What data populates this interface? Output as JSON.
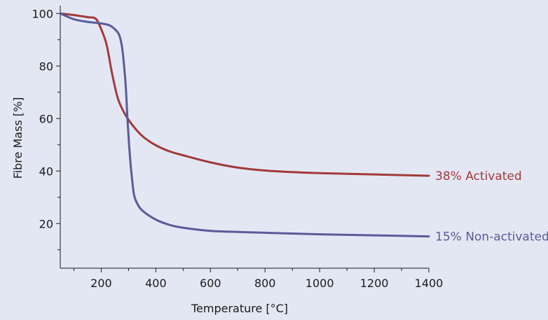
{
  "chart_data": {
    "type": "line",
    "title": "",
    "xlabel": "Temperature [°C]",
    "ylabel": "Fibre Mass [%]",
    "xlim": [
      50,
      1400
    ],
    "ylim": [
      3,
      103
    ],
    "x_ticks": [
      200,
      400,
      600,
      800,
      1000,
      1200,
      1400
    ],
    "x_minor_ticks": [
      100,
      300,
      500,
      700,
      900,
      1100,
      1300
    ],
    "y_ticks": [
      20,
      40,
      60,
      80,
      100
    ],
    "y_minor_ticks": [
      10,
      30,
      50,
      70,
      90
    ],
    "grid": false,
    "legend": "none (series labelled at line ends)",
    "series": [
      {
        "name": "Activated",
        "end_label": "38%  Activated",
        "color": "#a23a3a",
        "x": [
          50,
          100,
          150,
          180,
          200,
          220,
          240,
          260,
          280,
          300,
          330,
          360,
          400,
          450,
          500,
          600,
          700,
          800,
          900,
          1000,
          1200,
          1400
        ],
        "y": [
          100,
          99.4,
          98.6,
          98,
          94,
          88,
          77,
          68,
          63,
          59.5,
          55.5,
          52.5,
          49.8,
          47.5,
          46,
          43.3,
          41.3,
          40.2,
          39.6,
          39.2,
          38.7,
          38.2
        ]
      },
      {
        "name": "Non-activated",
        "end_label": "15%  Non-activated",
        "color": "#5a5a9a",
        "x": [
          50,
          100,
          150,
          200,
          230,
          250,
          265,
          275,
          282,
          290,
          296,
          302,
          308,
          314,
          320,
          330,
          350,
          400,
          450,
          500,
          600,
          700,
          800,
          1000,
          1200,
          1400
        ],
        "y": [
          100,
          97.8,
          96.8,
          96.2,
          95.5,
          94,
          92,
          88,
          82,
          72,
          60,
          50,
          42,
          36,
          31,
          28,
          25,
          21.5,
          19.5,
          18.4,
          17.2,
          16.8,
          16.5,
          15.9,
          15.5,
          15.1
        ]
      }
    ]
  }
}
